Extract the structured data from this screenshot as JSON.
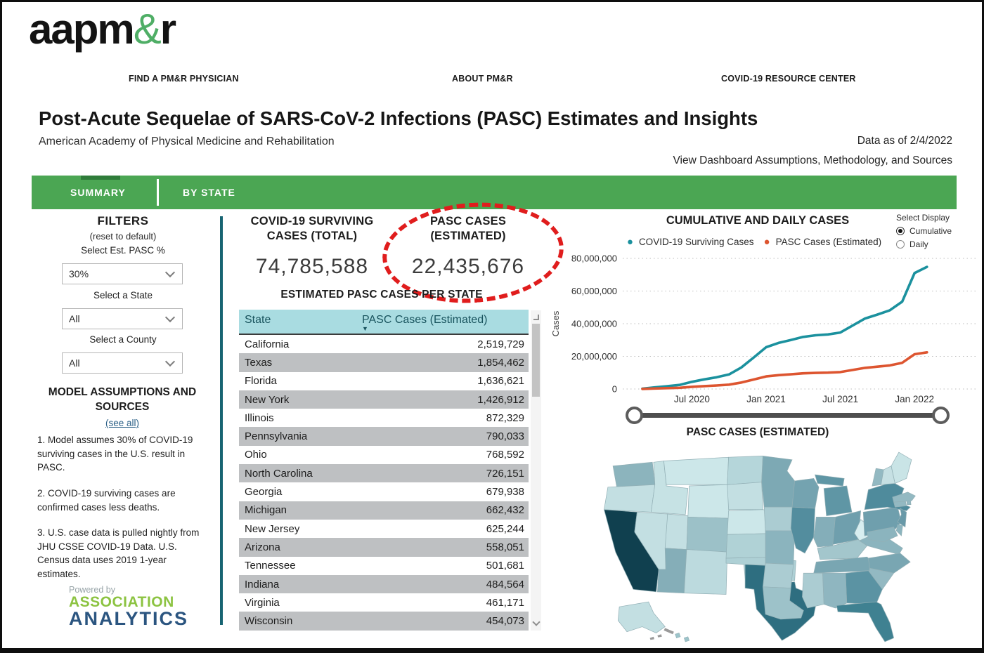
{
  "brand": {
    "logo_a": "aapm",
    "logo_amp": "&",
    "logo_r": "r"
  },
  "nav": [
    "FIND A PM&R PHYSICIAN",
    "ABOUT PM&R",
    "COVID-19 RESOURCE CENTER"
  ],
  "header": {
    "title": "Post-Acute Sequelae of SARS-CoV-2 Infections (PASC) Estimates and Insights",
    "subtitle": "American Academy of Physical Medicine and Rehabilitation",
    "data_as_of": "Data as of 2/4/2022",
    "view_link": "View Dashboard Assumptions, Methodology, and Sources"
  },
  "tabs": [
    {
      "label": "SUMMARY",
      "active": true
    },
    {
      "label": "BY STATE",
      "active": false
    }
  ],
  "filters": {
    "heading": "FILTERS",
    "reset": "(reset to default)",
    "fields": [
      {
        "label": "Select Est. PASC %",
        "value": "30%"
      },
      {
        "label": "Select a State",
        "value": "All"
      },
      {
        "label": "Select a County",
        "value": "All"
      }
    ]
  },
  "assumptions": {
    "heading": "MODEL ASSUMPTIONS AND SOURCES",
    "see_all": "(see all)",
    "notes": [
      "1. Model assumes 30% of COVID-19 surviving cases in the U.S. result in PASC.",
      "2. COVID-19 surviving cases are confirmed cases less deaths.",
      "3. U.S. case data is pulled nightly from JHU CSSE COVID-19 Data. U.S. Census data uses 2019 1-year estimates."
    ]
  },
  "powered": {
    "powered_by": "Powered by",
    "line1": "ASSOCIATION",
    "line2": "ANALYTICS"
  },
  "kpis": [
    {
      "label": "COVID-19 SURVIVING CASES (TOTAL)",
      "value": "74,785,588"
    },
    {
      "label": "PASC CASES (ESTIMATED)",
      "value": "22,435,676",
      "circled": true
    }
  ],
  "state_table": {
    "title": "ESTIMATED PASC CASES PER STATE",
    "columns": [
      "State",
      "PASC Cases (Estimated)"
    ],
    "sort": {
      "column": "PASC Cases (Estimated)",
      "direction": "desc"
    },
    "rows": [
      [
        "California",
        "2,519,729"
      ],
      [
        "Texas",
        "1,854,462"
      ],
      [
        "Florida",
        "1,636,621"
      ],
      [
        "New York",
        "1,426,912"
      ],
      [
        "Illinois",
        "872,329"
      ],
      [
        "Pennsylvania",
        "790,033"
      ],
      [
        "Ohio",
        "768,592"
      ],
      [
        "North Carolina",
        "726,151"
      ],
      [
        "Georgia",
        "679,938"
      ],
      [
        "Michigan",
        "662,432"
      ],
      [
        "New Jersey",
        "625,244"
      ],
      [
        "Arizona",
        "558,051"
      ],
      [
        "Tennessee",
        "501,681"
      ],
      [
        "Indiana",
        "484,564"
      ],
      [
        "Virginia",
        "461,171"
      ],
      [
        "Wisconsin",
        "454,073"
      ]
    ]
  },
  "display_control": {
    "label": "Select Display",
    "options": [
      {
        "label": "Cumulative",
        "selected": true
      },
      {
        "label": "Daily",
        "selected": false
      }
    ]
  },
  "chart_data": {
    "type": "line",
    "title": "CUMULATIVE AND DAILY CASES",
    "ylabel": "Cases",
    "ylim": [
      0,
      80000000
    ],
    "grid": "dotted-horizontal",
    "legend_position": "top",
    "yticks": [
      {
        "label": "0",
        "value": 0
      },
      {
        "label": "20,000,000",
        "value": 20000000
      },
      {
        "label": "40,000,000",
        "value": 40000000
      },
      {
        "label": "60,000,000",
        "value": 60000000
      },
      {
        "label": "80,000,000",
        "value": 80000000
      }
    ],
    "x_months": [
      "Mar 2020",
      "Apr 2020",
      "May 2020",
      "Jun 2020",
      "Jul 2020",
      "Aug 2020",
      "Sep 2020",
      "Oct 2020",
      "Nov 2020",
      "Dec 2020",
      "Jan 2021",
      "Feb 2021",
      "Mar 2021",
      "Apr 2021",
      "May 2021",
      "Jun 2021",
      "Jul 2021",
      "Aug 2021",
      "Sep 2021",
      "Oct 2021",
      "Nov 2021",
      "Dec 2021",
      "Jan 2022",
      "Feb 2022"
    ],
    "x_tick_indices": [
      4,
      10,
      16,
      22
    ],
    "x_tick_labels": [
      "Jul 2020",
      "Jan 2021",
      "Jul 2021",
      "Jan 2022"
    ],
    "series": [
      {
        "name": "COVID-19 Surviving Cases",
        "color": "#1b919e",
        "values": [
          200000,
          1000000,
          1700000,
          2500000,
          4400000,
          5900000,
          7200000,
          8900000,
          13200000,
          19300000,
          25600000,
          28200000,
          30000000,
          31900000,
          32900000,
          33400000,
          34600000,
          38900000,
          43200000,
          45600000,
          48200000,
          53500000,
          71000000,
          74785588
        ]
      },
      {
        "name": "PASC Cases (Estimated)",
        "color": "#dd5530",
        "values": [
          60000,
          300000,
          510000,
          750000,
          1320000,
          1770000,
          2160000,
          2670000,
          3960000,
          5790000,
          7680000,
          8460000,
          9000000,
          9570000,
          9870000,
          10020000,
          10380000,
          11670000,
          12960000,
          13680000,
          14460000,
          16050000,
          21300000,
          22435676
        ]
      }
    ]
  },
  "map": {
    "title": "PASC CASES (ESTIMATED)",
    "state_colors": {
      "CA": "#10404f",
      "TX": "#2e6e80",
      "FL": "#3f8191",
      "NY": "#4f8b9c",
      "IL": "#538d9e",
      "GA": "#5b93a3",
      "MI": "#5f96a5",
      "NJ": "#6899a8",
      "PA": "#6f9fad",
      "OH": "#6f9fad",
      "MN": "#7da9b4",
      "WI": "#74a3b0",
      "NC": "#79a6b2",
      "TN": "#79a6b2",
      "IN": "#84aeb9",
      "AZ": "#85aeb8",
      "VA": "#8bb4be",
      "MO": "#8bb4be",
      "WA": "#8cb4bd",
      "AL": "#8fb6c0",
      "SC": "#93b9c2",
      "MA": "#93b9c2",
      "CT": "#93b9c2",
      "RI": "#93b9c2",
      "VT": "#93b9c2",
      "MD": "#8bb4be",
      "DE": "#8bb4be",
      "CO": "#9cc1c8",
      "KY": "#a3c6cc",
      "LA": "#9dc2c9",
      "HI": "#9cc4ca",
      "OK": "#aed0d5",
      "KS": "#b0d2d6",
      "MS": "#abccd2",
      "AR": "#abccd2",
      "IA": "#abccd2",
      "ND": "#b5d6da",
      "NV": "#c3dfe2",
      "OR": "#c3dfe2",
      "UT": "#c3dfe2",
      "SD": "#c3dfe2",
      "NE": "#cce7e9",
      "ID": "#c6e2e4",
      "NM": "#bcdade",
      "MT": "#cce7e9",
      "WY": "#cce7e9",
      "WV": "#d8eef0",
      "NH": "#c6e0e3",
      "ME": "#c9e4e6",
      "AK": "#c3dfe2"
    }
  }
}
